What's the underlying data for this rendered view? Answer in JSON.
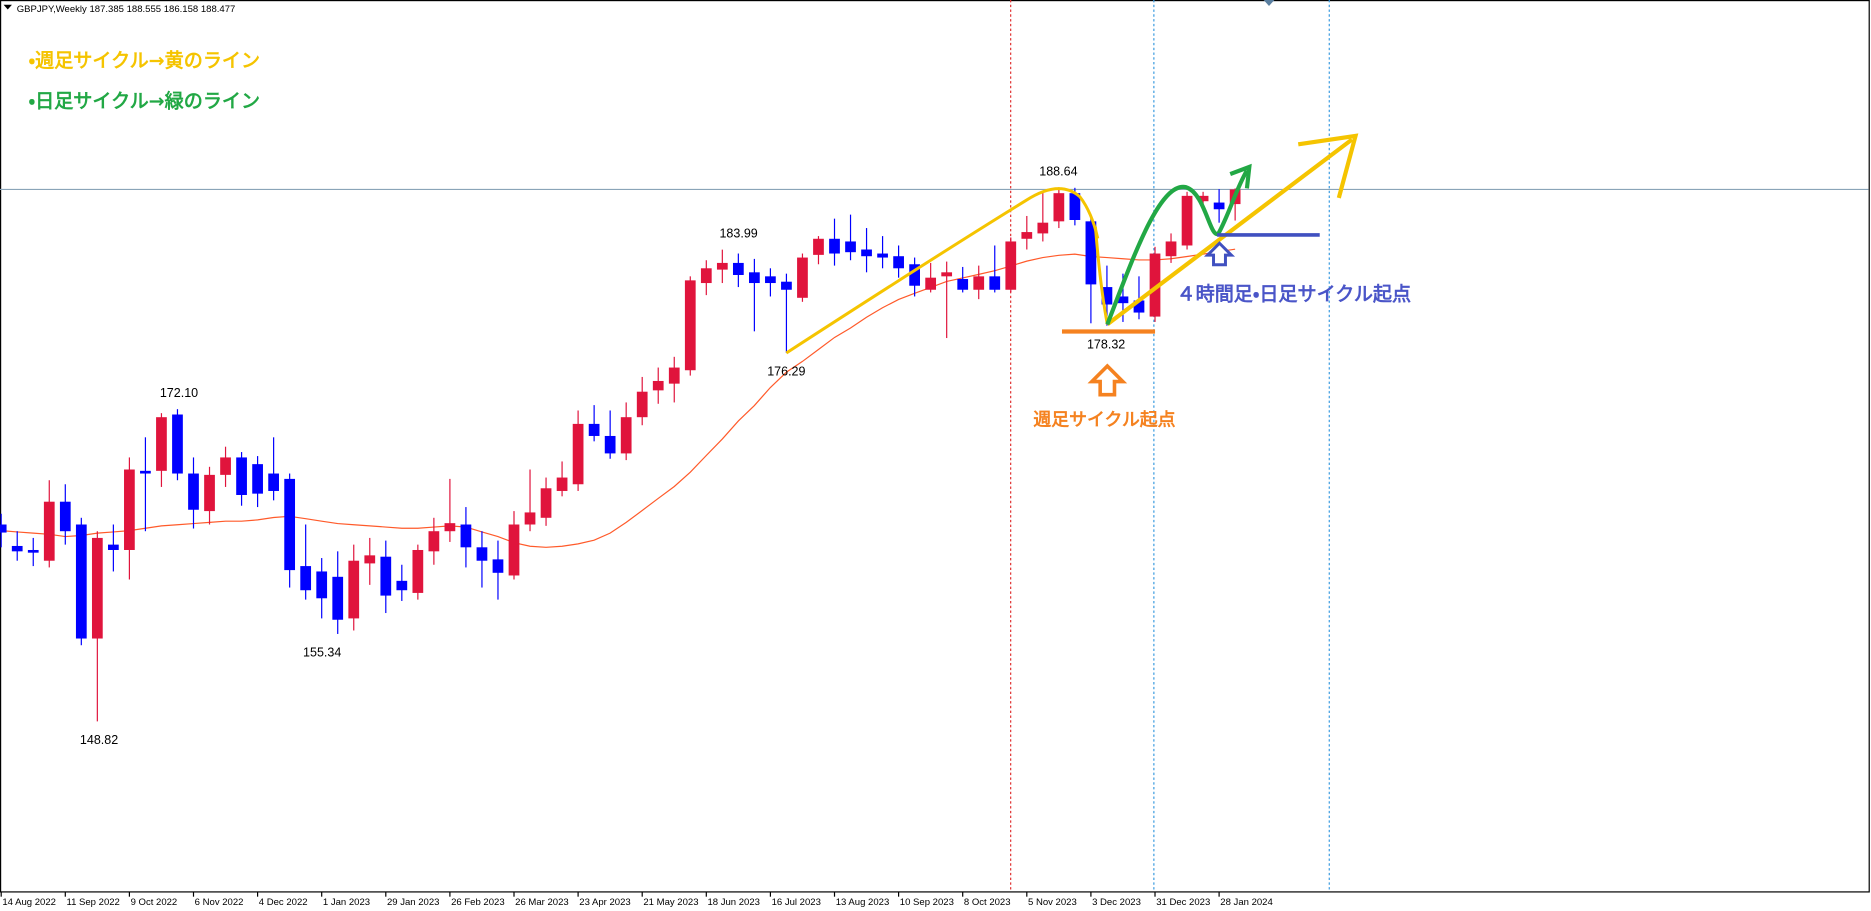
{
  "chart_data": {
    "type": "candlestick",
    "symbol": "GBPJPY,Weekly",
    "categories": [
      "14 Aug 2022",
      null,
      null,
      null,
      "11 Sep 2022",
      null,
      null,
      null,
      "9 Oct 2022",
      null,
      null,
      null,
      "6 Nov 2022",
      null,
      null,
      null,
      "4 Dec 2022",
      null,
      null,
      null,
      "1 Jan 2023",
      null,
      null,
      null,
      "29 Jan 2023",
      null,
      null,
      null,
      "26 Feb 2023",
      null,
      null,
      null,
      "26 Mar 2023",
      null,
      null,
      null,
      "23 Apr 2023",
      null,
      null,
      null,
      "21 May 2023",
      null,
      null,
      null,
      "18 Jun 2023",
      null,
      null,
      null,
      "16 Jul 2023",
      null,
      null,
      null,
      "13 Aug 2023",
      null,
      null,
      null,
      "10 Sep 2023",
      null,
      null,
      null,
      "8 Oct 2023",
      null,
      null,
      null,
      "5 Nov 2023",
      null,
      null,
      null,
      "3 Dec 2023",
      null,
      null,
      null,
      "31 Dec 2023",
      null,
      null,
      null,
      "28 Jan 2024",
      null
    ],
    "open": [
      163.5,
      161.9,
      161.6,
      160.8,
      165.2,
      163.5,
      155.0,
      162.0,
      161.6,
      167.5,
      167.5,
      171.7,
      167.3,
      164.5,
      167.2,
      168.5,
      168.0,
      167.3,
      166.9,
      160.4,
      160.0,
      159.6,
      156.5,
      160.6,
      161.1,
      159.3,
      158.4,
      161.5,
      163.0,
      163.5,
      161.8,
      160.9,
      159.7,
      163.5,
      164.0,
      166.0,
      166.5,
      171.0,
      170.1,
      168.8,
      171.5,
      173.5,
      174.0,
      175.0,
      181.5,
      182.5,
      183.0,
      182.3,
      182.0,
      181.6,
      180.4,
      183.6,
      184.8,
      184.6,
      184.0,
      183.7,
      183.5,
      182.9,
      181.0,
      182.0,
      181.8,
      181.0,
      182.0,
      181.0,
      184.8,
      185.2,
      186.1,
      188.2,
      186.1,
      181.2,
      180.5,
      180.2,
      179.0,
      183.5,
      184.3,
      187.6,
      187.5,
      187.385
    ],
    "high": [
      164.3,
      163.0,
      162.5,
      166.8,
      166.5,
      164.0,
      163.0,
      163.5,
      168.5,
      170.0,
      171.8,
      172.1,
      168.5,
      167.8,
      169.3,
      168.9,
      168.6,
      170.0,
      167.3,
      163.5,
      161.0,
      161.5,
      162.0,
      162.5,
      162.3,
      160.5,
      162.0,
      164.0,
      166.9,
      164.8,
      163.0,
      162.3,
      164.5,
      167.6,
      167.0,
      168.2,
      172.0,
      172.4,
      172.0,
      172.6,
      174.5,
      175.2,
      176.0,
      182.0,
      183.2,
      183.99,
      183.7,
      183.3,
      182.6,
      182.2,
      183.7,
      185.0,
      186.3,
      186.6,
      185.6,
      185.0,
      184.3,
      183.4,
      183.0,
      183.1,
      182.7,
      182.8,
      184.3,
      184.9,
      186.5,
      188.3,
      188.64,
      188.6,
      186.6,
      182.8,
      182.2,
      182.0,
      184.2,
      185.2,
      188.3,
      188.3,
      188.5,
      188.555
    ],
    "low": [
      161.8,
      160.8,
      160.4,
      160.3,
      162.0,
      154.5,
      148.82,
      160.0,
      159.4,
      163.0,
      166.3,
      166.8,
      163.2,
      163.5,
      166.3,
      164.9,
      164.8,
      165.3,
      158.8,
      157.9,
      156.5,
      155.34,
      155.6,
      159.0,
      156.9,
      157.8,
      157.9,
      160.5,
      162.2,
      160.3,
      158.8,
      157.9,
      159.4,
      163.0,
      163.4,
      165.6,
      166.0,
      169.7,
      168.4,
      168.3,
      170.9,
      172.5,
      172.6,
      174.6,
      180.6,
      181.5,
      181.2,
      177.9,
      180.5,
      176.29,
      180.1,
      182.9,
      182.8,
      183.2,
      182.3,
      182.6,
      181.9,
      180.5,
      180.8,
      177.4,
      180.8,
      180.3,
      180.8,
      180.8,
      184.0,
      184.6,
      185.6,
      185.8,
      178.5,
      178.32,
      178.6,
      178.8,
      178.6,
      183.0,
      184.0,
      186.9,
      186.0,
      186.158
    ],
    "close": [
      162.9,
      161.5,
      161.4,
      165.2,
      163.0,
      155.0,
      162.5,
      161.6,
      167.6,
      167.3,
      171.5,
      167.3,
      164.6,
      167.2,
      168.5,
      165.7,
      165.8,
      166.0,
      160.1,
      158.6,
      158.0,
      156.4,
      160.8,
      161.2,
      158.2,
      158.6,
      161.6,
      163.0,
      163.6,
      161.8,
      160.8,
      159.9,
      163.5,
      164.4,
      166.2,
      167.0,
      171.0,
      170.1,
      168.8,
      171.5,
      173.4,
      174.2,
      175.2,
      181.7,
      182.6,
      183.0,
      182.1,
      181.5,
      181.5,
      181.0,
      183.4,
      184.8,
      183.7,
      183.8,
      183.5,
      183.4,
      182.6,
      181.3,
      181.9,
      182.3,
      181.0,
      182.0,
      181.0,
      184.6,
      185.3,
      186.0,
      188.2,
      186.2,
      181.4,
      179.9,
      180.0,
      179.3,
      183.7,
      184.6,
      188.0,
      188.0,
      187.0,
      188.477
    ],
    "up_color": "#e0143c",
    "down_color": "#0000ff",
    "moving_average": {
      "color": "#ff5a2a",
      "values": [
        163.04,
        162.95,
        162.86,
        162.77,
        162.6,
        162.68,
        162.86,
        162.95,
        163.04,
        163.22,
        163.4,
        163.48,
        163.57,
        163.66,
        163.75,
        163.75,
        163.84,
        164.02,
        164.11,
        163.93,
        163.75,
        163.57,
        163.48,
        163.4,
        163.31,
        163.22,
        163.22,
        163.31,
        163.4,
        163.31,
        162.95,
        162.6,
        162.15,
        161.88,
        161.8,
        161.88,
        162.06,
        162.33,
        162.86,
        163.66,
        164.55,
        165.44,
        166.33,
        167.4,
        168.64,
        169.88,
        171.22,
        172.37,
        173.71,
        174.86,
        175.66,
        176.55,
        177.44,
        178.15,
        178.95,
        179.66,
        180.28,
        180.73,
        181.17,
        181.62,
        181.88,
        182.15,
        182.42,
        182.77,
        183.13,
        183.4,
        183.57,
        183.66,
        183.48,
        183.4,
        183.31,
        183.22,
        183.22,
        183.31,
        183.48,
        183.66,
        183.84,
        184.02
      ]
    },
    "ylim": [
      136.11,
      202.6
    ],
    "price_labels": [
      {
        "value": 172.1,
        "label": "172.10"
      },
      {
        "value": 148.82,
        "label": "148.82"
      },
      {
        "value": 155.34,
        "label": "155.34"
      },
      {
        "value": 183.99,
        "label": "183.99"
      },
      {
        "value": 176.29,
        "label": "176.29"
      },
      {
        "value": 188.64,
        "label": "188.64"
      },
      {
        "value": 178.32,
        "label": "178.32"
      }
    ],
    "annotations": {
      "weekly_legend": "・週足サイクル→黄のライン",
      "daily_legend": "・日足サイクル→緑のライン",
      "h4_daily_start": "４時間足・日足サイクル起点",
      "weekly_start": "週足サイクル起点"
    }
  }
}
